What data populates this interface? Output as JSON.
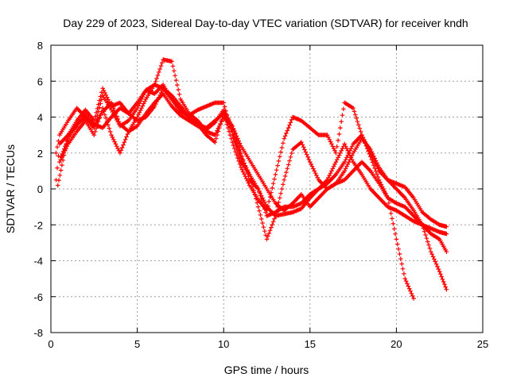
{
  "chart_data": {
    "type": "scatter",
    "title": "Day 229 of 2023, Sidereal Day-to-day VTEC variation (SDTVAR) for receiver kndh",
    "xlabel": "GPS time / hours",
    "ylabel": "SDTVAR / TECUs",
    "xlim": [
      0,
      25
    ],
    "ylim": [
      -8,
      8
    ],
    "xticks": [
      0,
      5,
      10,
      15,
      20,
      25
    ],
    "yticks": [
      -8,
      -6,
      -4,
      -2,
      0,
      2,
      4,
      6,
      8
    ],
    "grid": true,
    "marker": "+",
    "color": "#ff0000",
    "series": [
      {
        "x": [
          0.3,
          0.5,
          1.0,
          1.5,
          2.0,
          2.5,
          3.0,
          3.5,
          4.0,
          4.5,
          5.0,
          5.5,
          6.0,
          6.5,
          7.0,
          7.5,
          8.0,
          8.5,
          9.0,
          9.5,
          10.0,
          10.5,
          11.0,
          11.5,
          12.0,
          12.5,
          13.0,
          13.5,
          14.0,
          14.5,
          15.0,
          15.5,
          16.0,
          16.5,
          17.0,
          17.5,
          18.0,
          18.5,
          19.0,
          19.5,
          20.0,
          20.5,
          21.0,
          21.5,
          22.0,
          22.5,
          22.9
        ],
        "y": [
          2.0,
          3.0,
          3.8,
          4.5,
          4.0,
          3.4,
          5.2,
          4.4,
          3.5,
          3.8,
          4.5,
          5.5,
          5.3,
          5.8,
          5.0,
          4.3,
          4.1,
          4.4,
          4.6,
          4.8,
          4.8,
          3.0,
          1.5,
          0.8,
          0.0,
          -1.5,
          -1.3,
          -1.0,
          -1.0,
          -0.8,
          -0.3,
          0.0,
          0.3,
          0.8,
          1.5,
          2.5,
          3.0,
          2.0,
          1.0,
          0.5,
          0.3,
          0.1,
          -0.5,
          -1.3,
          -1.7,
          -2.0,
          -2.1
        ]
      },
      {
        "x": [
          0.3,
          0.5,
          1.0,
          1.5,
          2.0,
          2.5,
          3.0,
          3.5,
          4.0,
          4.5,
          5.0,
          5.5,
          6.0,
          6.5,
          7.0,
          7.5,
          8.0,
          8.5,
          9.0,
          9.5,
          10.0,
          10.5,
          11.0,
          11.5,
          12.0,
          12.5,
          13.0,
          13.5,
          14.0,
          14.5,
          15.0,
          15.5,
          16.0,
          16.5,
          17.0,
          17.5,
          18.0,
          18.5,
          19.0,
          19.5,
          20.0,
          20.5,
          21.0,
          21.5,
          22.0,
          22.5,
          22.9
        ],
        "y": [
          0.5,
          2.5,
          3.0,
          3.5,
          4.2,
          3.5,
          4.3,
          4.8,
          3.6,
          3.2,
          3.5,
          4.2,
          4.8,
          5.3,
          4.6,
          4.1,
          3.8,
          3.5,
          3.3,
          3.7,
          4.4,
          3.5,
          2.4,
          1.6,
          0.8,
          0.0,
          -0.8,
          -1.2,
          -0.8,
          -0.3,
          -1.0,
          -0.5,
          0.0,
          0.3,
          0.5,
          1.0,
          1.5,
          1.0,
          0.3,
          -0.5,
          -0.8,
          -1.0,
          -1.5,
          -2.0,
          -2.5,
          -2.8,
          -3.5
        ]
      },
      {
        "x": [
          0.5,
          1.0,
          1.5,
          2.0,
          2.5,
          3.0,
          3.5,
          4.0,
          4.5,
          5.0,
          5.5,
          6.0,
          6.5,
          7.0,
          7.5,
          8.0,
          8.5,
          9.0,
          9.5,
          10.0,
          10.5,
          11.0,
          11.5,
          12.0,
          12.5,
          13.0,
          13.5,
          14.0,
          14.5,
          15.0,
          15.5,
          16.0,
          16.5,
          17.0,
          17.5,
          18.0,
          18.5,
          19.0,
          19.5,
          20.0,
          20.5,
          21.0,
          21.5,
          22.0,
          22.5,
          22.9
        ],
        "y": [
          1.5,
          2.5,
          3.2,
          3.8,
          3.0,
          4.5,
          3.0,
          2.0,
          3.2,
          4.0,
          5.0,
          5.8,
          7.2,
          7.1,
          5.0,
          4.2,
          3.8,
          3.2,
          3.0,
          4.0,
          3.5,
          2.0,
          0.5,
          0.0,
          -1.0,
          -1.5,
          -1.4,
          -1.3,
          -1.1,
          -0.5,
          0.0,
          0.5,
          1.5,
          2.5,
          1.5,
          0.8,
          0.0,
          -0.5,
          -1.0,
          -1.2,
          -1.5,
          -1.8,
          -2.0,
          -2.2,
          -2.4,
          -2.5
        ]
      },
      {
        "x": [
          0.6,
          1.0,
          1.5,
          2.0,
          2.5,
          3.0,
          3.5,
          4.0,
          4.5,
          5.0,
          5.5,
          6.0,
          6.5,
          7.0,
          7.5,
          8.0,
          8.5,
          9.0,
          9.5,
          10.0,
          10.5,
          11.0,
          11.5,
          12.0,
          12.5,
          13.0,
          13.5,
          14.0,
          14.5,
          15.0,
          15.5,
          16.0,
          16.5,
          17.0,
          17.5,
          18.0,
          18.5,
          19.0,
          19.5,
          20.0,
          20.5,
          21.0,
          21.5,
          22.0,
          22.5,
          22.9
        ],
        "y": [
          1.8,
          2.8,
          3.6,
          4.0,
          3.6,
          3.4,
          4.0,
          4.5,
          4.2,
          3.8,
          4.0,
          4.6,
          5.6,
          5.2,
          4.6,
          4.0,
          3.6,
          3.4,
          3.8,
          4.2,
          3.2,
          1.8,
          0.8,
          -1.0,
          -2.8,
          -1.5,
          0.5,
          2.2,
          2.6,
          1.5,
          0.5,
          0.0,
          0.3,
          1.0,
          2.0,
          2.8,
          2.2,
          1.2,
          0.5,
          0.0,
          -0.5,
          -1.2,
          -2.0,
          -3.5,
          -4.6,
          -5.6
        ]
      },
      {
        "x": [
          0.4,
          1.0,
          1.5,
          2.0,
          2.5,
          3.0,
          3.5,
          4.0,
          4.5,
          5.0,
          5.5,
          6.0,
          6.5,
          7.0,
          7.5,
          8.0,
          8.5,
          9.0,
          9.5,
          10.0,
          10.5,
          11.0,
          11.5,
          12.0,
          12.5,
          13.0,
          13.5,
          14.0,
          14.5,
          15.0,
          15.5,
          16.0,
          16.5,
          17.0,
          17.5,
          18.0,
          18.5,
          19.0,
          19.5,
          20.0,
          20.5,
          21.0
        ],
        "y": [
          0.2,
          3.0,
          3.8,
          4.4,
          3.8,
          5.6,
          4.6,
          4.8,
          4.2,
          4.8,
          5.5,
          5.8,
          5.6,
          5.0,
          4.4,
          4.0,
          3.6,
          3.0,
          2.6,
          4.2,
          2.6,
          1.2,
          0.2,
          -0.6,
          -1.2,
          0.8,
          2.8,
          4.0,
          3.8,
          3.4,
          3.0,
          3.0,
          2.0,
          4.8,
          4.5,
          3.0,
          1.8,
          0.5,
          -0.5,
          -2.8,
          -5.0,
          -6.1
        ]
      }
    ]
  }
}
